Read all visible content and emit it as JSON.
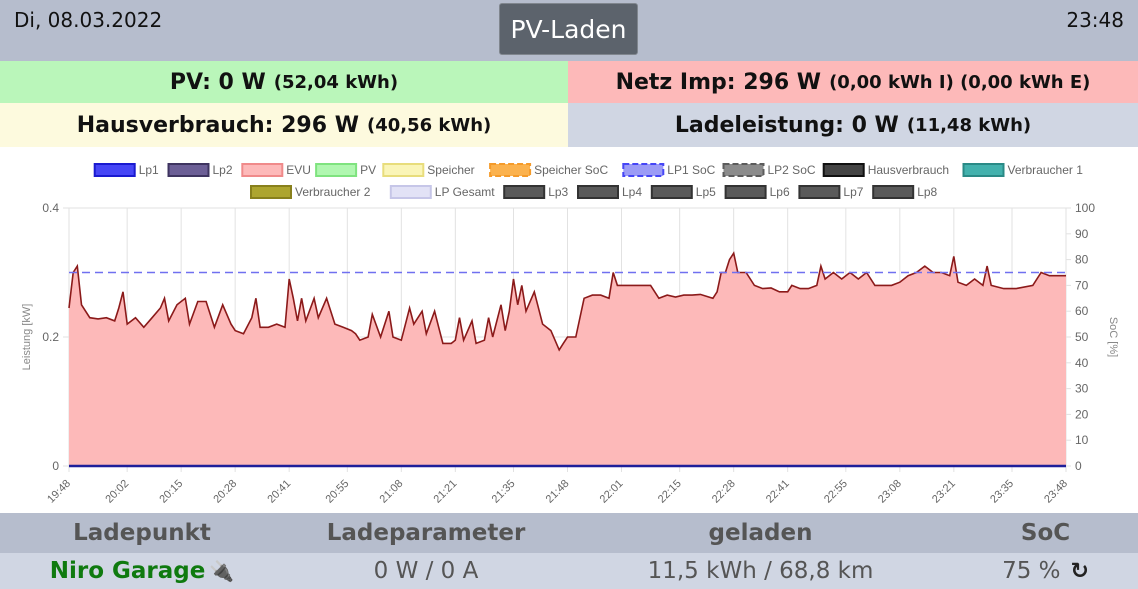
{
  "header": {
    "date": "Di, 08.03.2022",
    "time": "23:48",
    "mode_button": "PV-Laden"
  },
  "tiles": {
    "pv": {
      "label": "PV: 0 W",
      "detail": "(52,04 kWh)",
      "color": "#baf6ba"
    },
    "netz": {
      "label": "Netz Imp: 296 W",
      "detail": "(0,00 kWh I) (0,00 kWh E)",
      "color": "#fdb9b9"
    },
    "haus": {
      "label": "Hausverbrauch: 296 W",
      "detail": "(40,56 kWh)",
      "color": "#fdfade"
    },
    "lade": {
      "label": "Ladeleistung: 0 W",
      "detail": "(11,48 kWh)",
      "color": "#d0d6e3"
    }
  },
  "chart_data": {
    "type": "area",
    "legend": [
      {
        "label": "Lp1",
        "color": "#4646f6",
        "border": "#1a1ad0",
        "dashed": false
      },
      {
        "label": "Lp2",
        "color": "#6c5f96",
        "border": "#3e3460",
        "dashed": false
      },
      {
        "label": "EVU",
        "color": "#fdb9b9",
        "border": "#f08a8a",
        "dashed": false
      },
      {
        "label": "PV",
        "color": "#b0f7b0",
        "border": "#7fe37f",
        "dashed": false
      },
      {
        "label": "Speicher",
        "color": "#faf5b8",
        "border": "#e8dd7c",
        "dashed": false
      },
      {
        "label": "Speicher SoC",
        "color": "#fbb24e",
        "border": "#f59b2a",
        "dashed": true
      },
      {
        "label": "LP1 SoC",
        "color": "#9c9cf6",
        "border": "#4646f6",
        "dashed": true
      },
      {
        "label": "LP2 SoC",
        "color": "#8c8c8c",
        "border": "#5c5c5c",
        "dashed": true
      },
      {
        "label": "Hausverbrauch",
        "color": "#444444",
        "border": "#111111",
        "dashed": false
      },
      {
        "label": "Verbraucher 1",
        "color": "#43b1ad",
        "border": "#2a8a86",
        "dashed": false
      },
      {
        "label": "Verbraucher 2",
        "color": "#ada52f",
        "border": "#88801c",
        "dashed": false
      },
      {
        "label": "LP Gesamt",
        "color": "#e2e2f6",
        "border": "#c6c6e8",
        "dashed": false
      },
      {
        "label": "Lp3",
        "color": "#5a5a5a",
        "border": "#333333",
        "dashed": false
      },
      {
        "label": "Lp4",
        "color": "#5a5a5a",
        "border": "#333333",
        "dashed": false
      },
      {
        "label": "Lp5",
        "color": "#5a5a5a",
        "border": "#333333",
        "dashed": false
      },
      {
        "label": "Lp6",
        "color": "#5a5a5a",
        "border": "#333333",
        "dashed": false
      },
      {
        "label": "Lp7",
        "color": "#5a5a5a",
        "border": "#333333",
        "dashed": false
      },
      {
        "label": "Lp8",
        "color": "#5a5a5a",
        "border": "#333333",
        "dashed": false
      }
    ],
    "ylabel_left": "Leistung [kW]",
    "ylabel_right": "SoC [%]",
    "ylim": [
      0,
      0.4
    ],
    "yticks_left": [
      "0",
      "0.2",
      "0.4"
    ],
    "ylim_right": [
      0,
      100
    ],
    "yticks_right": [
      "0",
      "10",
      "20",
      "30",
      "40",
      "50",
      "60",
      "70",
      "80",
      "90",
      "100"
    ],
    "xticks": [
      "19:48",
      "20:02",
      "20:15",
      "20:28",
      "20:41",
      "20:55",
      "21:08",
      "21:21",
      "21:35",
      "21:48",
      "22:01",
      "22:15",
      "22:28",
      "22:41",
      "22:55",
      "23:08",
      "23:21",
      "23:35",
      "23:48"
    ],
    "soc_lp1": 75,
    "evu_series": [
      [
        "19:48",
        0.245
      ],
      [
        "19:49",
        0.3
      ],
      [
        "19:50",
        0.31
      ],
      [
        "19:51",
        0.25
      ],
      [
        "19:53",
        0.23
      ],
      [
        "19:55",
        0.228
      ],
      [
        "19:57",
        0.23
      ],
      [
        "19:59",
        0.225
      ],
      [
        "20:00",
        0.245
      ],
      [
        "20:01",
        0.27
      ],
      [
        "20:02",
        0.22
      ],
      [
        "20:04",
        0.23
      ],
      [
        "20:06",
        0.215
      ],
      [
        "20:08",
        0.23
      ],
      [
        "20:10",
        0.245
      ],
      [
        "20:11",
        0.26
      ],
      [
        "20:12",
        0.225
      ],
      [
        "20:14",
        0.25
      ],
      [
        "20:16",
        0.26
      ],
      [
        "20:17",
        0.22
      ],
      [
        "20:19",
        0.255
      ],
      [
        "20:21",
        0.255
      ],
      [
        "20:23",
        0.215
      ],
      [
        "20:25",
        0.25
      ],
      [
        "20:27",
        0.22
      ],
      [
        "20:28",
        0.21
      ],
      [
        "20:30",
        0.205
      ],
      [
        "20:32",
        0.23
      ],
      [
        "20:33",
        0.26
      ],
      [
        "20:34",
        0.215
      ],
      [
        "20:36",
        0.215
      ],
      [
        "20:38",
        0.22
      ],
      [
        "20:40",
        0.215
      ],
      [
        "20:41",
        0.29
      ],
      [
        "20:42",
        0.26
      ],
      [
        "20:43",
        0.225
      ],
      [
        "20:44",
        0.26
      ],
      [
        "20:45",
        0.225
      ],
      [
        "20:47",
        0.26
      ],
      [
        "20:48",
        0.23
      ],
      [
        "20:50",
        0.26
      ],
      [
        "20:52",
        0.22
      ],
      [
        "20:54",
        0.215
      ],
      [
        "20:56",
        0.21
      ],
      [
        "20:57",
        0.205
      ],
      [
        "20:58",
        0.195
      ],
      [
        "21:00",
        0.2
      ],
      [
        "21:01",
        0.235
      ],
      [
        "21:03",
        0.2
      ],
      [
        "21:05",
        0.24
      ],
      [
        "21:06",
        0.2
      ],
      [
        "21:08",
        0.195
      ],
      [
        "21:10",
        0.245
      ],
      [
        "21:11",
        0.22
      ],
      [
        "21:13",
        0.24
      ],
      [
        "21:14",
        0.205
      ],
      [
        "21:16",
        0.24
      ],
      [
        "21:17",
        0.215
      ],
      [
        "21:18",
        0.19
      ],
      [
        "21:20",
        0.19
      ],
      [
        "21:21",
        0.195
      ],
      [
        "21:22",
        0.23
      ],
      [
        "21:23",
        0.195
      ],
      [
        "21:25",
        0.225
      ],
      [
        "21:26",
        0.19
      ],
      [
        "21:28",
        0.195
      ],
      [
        "21:29",
        0.23
      ],
      [
        "21:30",
        0.2
      ],
      [
        "21:32",
        0.25
      ],
      [
        "21:33",
        0.21
      ],
      [
        "21:34",
        0.24
      ],
      [
        "21:35",
        0.29
      ],
      [
        "21:36",
        0.25
      ],
      [
        "21:37",
        0.28
      ],
      [
        "21:38",
        0.24
      ],
      [
        "21:40",
        0.27
      ],
      [
        "21:42",
        0.22
      ],
      [
        "21:44",
        0.21
      ],
      [
        "21:46",
        0.18
      ],
      [
        "21:47",
        0.19
      ],
      [
        "21:48",
        0.2
      ],
      [
        "21:50",
        0.2
      ],
      [
        "21:52",
        0.26
      ],
      [
        "21:54",
        0.265
      ],
      [
        "21:56",
        0.265
      ],
      [
        "21:58",
        0.26
      ],
      [
        "21:59",
        0.3
      ],
      [
        "22:00",
        0.28
      ],
      [
        "22:02",
        0.28
      ],
      [
        "22:05",
        0.28
      ],
      [
        "22:08",
        0.28
      ],
      [
        "22:10",
        0.26
      ],
      [
        "22:12",
        0.265
      ],
      [
        "22:14",
        0.262
      ],
      [
        "22:16",
        0.265
      ],
      [
        "22:18",
        0.265
      ],
      [
        "22:20",
        0.266
      ],
      [
        "22:22",
        0.262
      ],
      [
        "22:23",
        0.26
      ],
      [
        "22:24",
        0.27
      ],
      [
        "22:25",
        0.3
      ],
      [
        "22:26",
        0.3
      ],
      [
        "22:27",
        0.32
      ],
      [
        "22:28",
        0.33
      ],
      [
        "22:29",
        0.3
      ],
      [
        "22:31",
        0.3
      ],
      [
        "22:33",
        0.28
      ],
      [
        "22:35",
        0.275
      ],
      [
        "22:37",
        0.276
      ],
      [
        "22:39",
        0.27
      ],
      [
        "22:41",
        0.27
      ],
      [
        "22:42",
        0.28
      ],
      [
        "22:44",
        0.275
      ],
      [
        "22:46",
        0.275
      ],
      [
        "22:48",
        0.28
      ],
      [
        "22:49",
        0.31
      ],
      [
        "22:50",
        0.29
      ],
      [
        "22:52",
        0.3
      ],
      [
        "22:54",
        0.29
      ],
      [
        "22:56",
        0.3
      ],
      [
        "22:58",
        0.29
      ],
      [
        "23:00",
        0.3
      ],
      [
        "23:02",
        0.28
      ],
      [
        "23:04",
        0.28
      ],
      [
        "23:06",
        0.28
      ],
      [
        "23:08",
        0.285
      ],
      [
        "23:10",
        0.295
      ],
      [
        "23:12",
        0.3
      ],
      [
        "23:14",
        0.31
      ],
      [
        "23:16",
        0.3
      ],
      [
        "23:18",
        0.3
      ],
      [
        "23:20",
        0.295
      ],
      [
        "23:21",
        0.325
      ],
      [
        "23:22",
        0.285
      ],
      [
        "23:24",
        0.28
      ],
      [
        "23:26",
        0.29
      ],
      [
        "23:28",
        0.28
      ],
      [
        "23:29",
        0.31
      ],
      [
        "23:30",
        0.28
      ],
      [
        "23:33",
        0.275
      ],
      [
        "23:36",
        0.275
      ],
      [
        "23:40",
        0.28
      ],
      [
        "23:42",
        0.3
      ],
      [
        "23:44",
        0.295
      ],
      [
        "23:46",
        0.295
      ],
      [
        "23:48",
        0.295
      ]
    ],
    "lp_series_value": 0
  },
  "table": {
    "headers": [
      "Ladepunkt",
      "Ladeparameter",
      "geladen",
      "SoC"
    ],
    "row": {
      "name": "Niro Garage",
      "plug_icon": "plug-icon",
      "params": "0 W / 0 A",
      "charged": "11,5 kWh / 68,8 km",
      "soc": "75 %",
      "refresh_icon": "refresh-icon"
    }
  }
}
